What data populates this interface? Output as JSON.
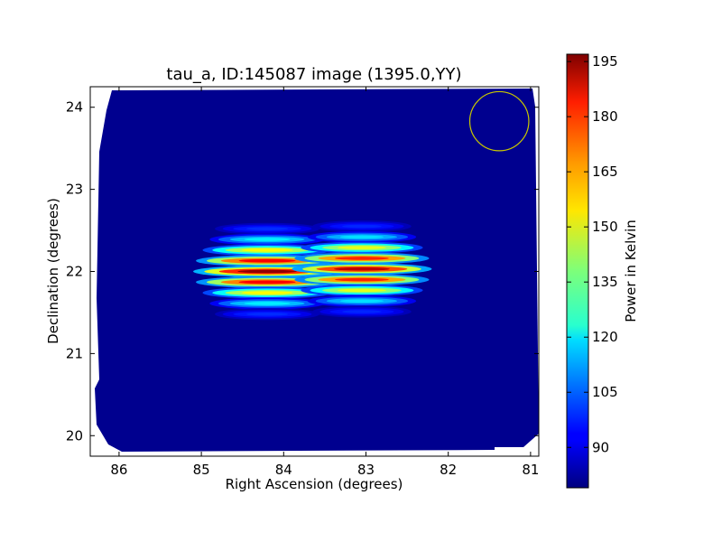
{
  "chart_data": {
    "type": "heatmap",
    "title": "tau_a, ID:145087 image (1395.0,YY)",
    "xlabel": "Right Ascension (degrees)",
    "ylabel": "Declination (degrees)",
    "xlim": [
      86.35,
      80.9
    ],
    "ylim": [
      19.75,
      24.25
    ],
    "x_ticks": [
      "86",
      "85",
      "84",
      "83",
      "82",
      "81"
    ],
    "y_ticks": [
      "20",
      "21",
      "22",
      "23",
      "24"
    ],
    "grid": false,
    "colormap": "jet",
    "background_level": 80,
    "sources": [
      {
        "ra": 84.2,
        "dec": 22.0,
        "peak": 195,
        "fringes": 9,
        "fringe_spacing_deg": 0.13,
        "half_width_ra": 0.9
      },
      {
        "ra": 83.05,
        "dec": 22.03,
        "peak": 190,
        "fringes": 9,
        "fringe_spacing_deg": 0.13,
        "half_width_ra": 0.85
      }
    ],
    "beam_circle": {
      "ra": 81.38,
      "dec": 23.83,
      "radius_deg": 0.36,
      "color": "#c8c800"
    },
    "colorbar": {
      "label": "Power in Kelvin",
      "min": 79,
      "max": 197,
      "ticks": [
        "90",
        "105",
        "120",
        "135",
        "150",
        "165",
        "180",
        "195"
      ]
    }
  }
}
